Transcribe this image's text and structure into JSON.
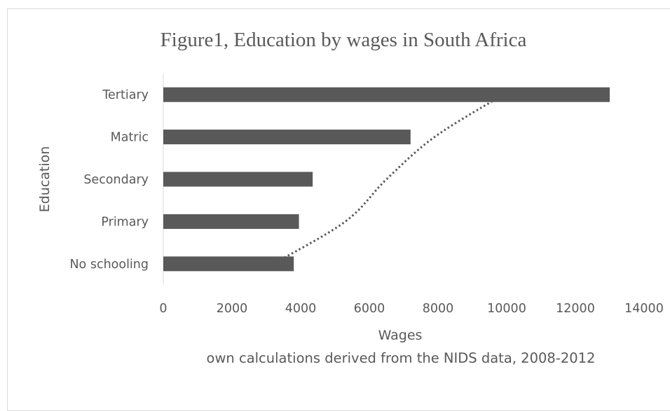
{
  "chart_data": {
    "type": "bar",
    "orientation": "horizontal",
    "title": "Figure1, Education by wages in South Africa",
    "xlabel": "Wages",
    "ylabel": "Education",
    "note": "own calculations derived from the NIDS data, 2008-2012",
    "categories": [
      "No schooling",
      "Primary",
      "Secondary",
      "Matric",
      "Tertiary"
    ],
    "values": [
      3800,
      3950,
      4350,
      7200,
      13000
    ],
    "xlim": [
      0,
      14000
    ],
    "xticks": [
      0,
      2000,
      4000,
      6000,
      8000,
      10000,
      12000,
      14000
    ],
    "grid": false,
    "legend": "none",
    "bar_color": "#595959",
    "trendline": {
      "type": "logarithmic",
      "style": "dotted",
      "color": "#595959",
      "values": [
        3200,
        5300,
        6500,
        7900,
        9900
      ]
    }
  }
}
